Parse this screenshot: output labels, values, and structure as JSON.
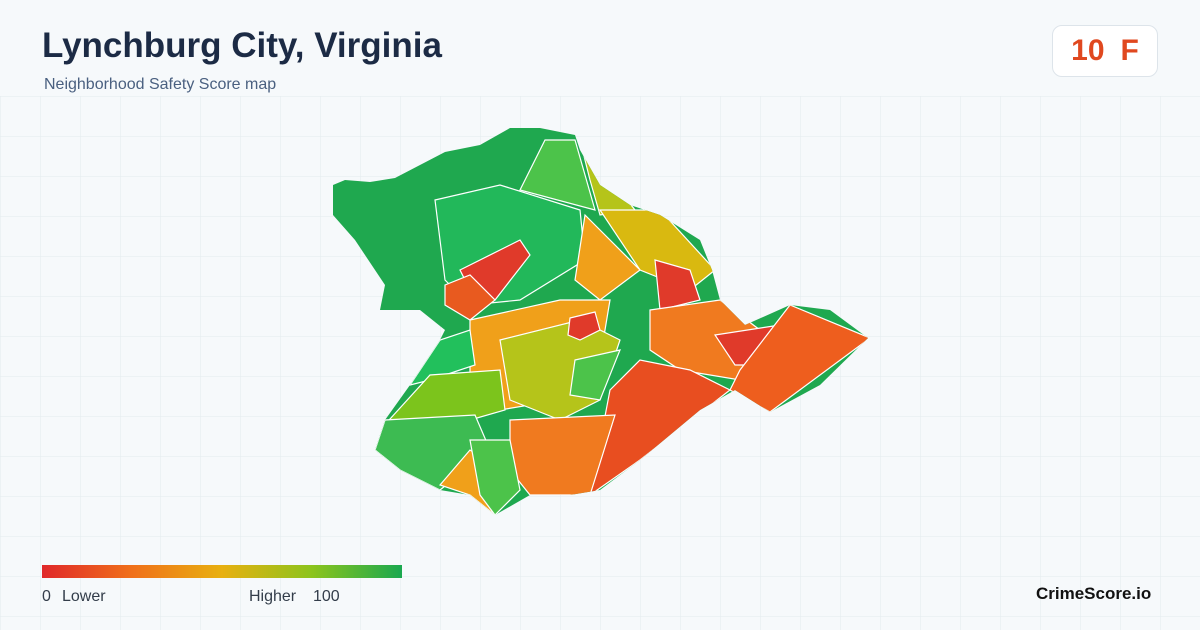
{
  "header": {
    "title": "Lynchburg City, Virginia",
    "subtitle": "Neighborhood Safety Score map"
  },
  "score": {
    "value": 10,
    "grade": "F"
  },
  "legend": {
    "min": 0,
    "min_label": "Lower",
    "max_label": "Higher",
    "max": 100
  },
  "footer": {
    "brand": "CrimeScore.io"
  }
}
